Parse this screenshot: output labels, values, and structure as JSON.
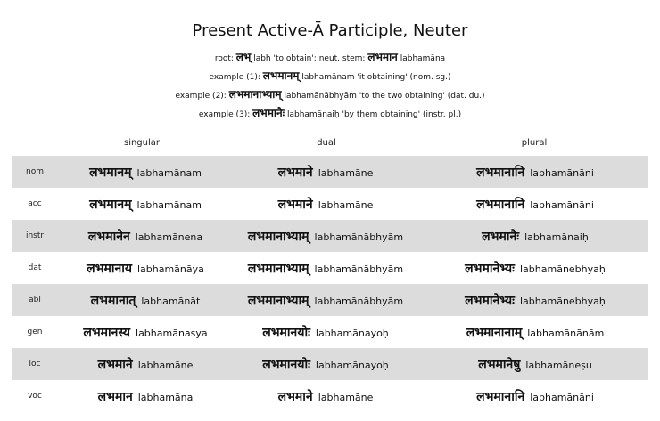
{
  "title": "Present Active-Ā Participle, Neuter",
  "info": {
    "root_prefix": "root: ",
    "root_dev": "लभ्",
    "root_rest": " labh 'to obtain'; neut. stem: ",
    "stem_dev": "लभमान",
    "stem_tr": " labhamāna",
    "ex1_prefix": "example (1): ",
    "ex1_dev": "लभमानम्",
    "ex1_rest": " labhamānam 'it obtaining' (nom. sg.)",
    "ex2_prefix": "example (2): ",
    "ex2_dev": "लभमानाभ्याम्",
    "ex2_rest": " labhamānābhyām 'to the two obtaining' (dat. du.)",
    "ex3_prefix": "example (3): ",
    "ex3_dev": "लभमानैः",
    "ex3_rest": " labhamānaiḥ 'by them obtaining' (instr. pl.)"
  },
  "headers": {
    "singular": "singular",
    "dual": "dual",
    "plural": "plural"
  },
  "rows": [
    {
      "case": "nom",
      "sg_dev": "लभमानम्",
      "sg_tr": "labhamānam",
      "du_dev": "लभमाने",
      "du_tr": "labhamāne",
      "pl_dev": "लभमानानि",
      "pl_tr": "labhamānāni"
    },
    {
      "case": "acc",
      "sg_dev": "लभमानम्",
      "sg_tr": "labhamānam",
      "du_dev": "लभमाने",
      "du_tr": "labhamāne",
      "pl_dev": "लभमानानि",
      "pl_tr": "labhamānāni"
    },
    {
      "case": "instr",
      "sg_dev": "लभमानेन",
      "sg_tr": "labhamānena",
      "du_dev": "लभमानाभ्याम्",
      "du_tr": "labhamānābhyām",
      "pl_dev": "लभमानैः",
      "pl_tr": "labhamānaiḥ"
    },
    {
      "case": "dat",
      "sg_dev": "लभमानाय",
      "sg_tr": "labhamānāya",
      "du_dev": "लभमानाभ्याम्",
      "du_tr": "labhamānābhyām",
      "pl_dev": "लभमानेभ्यः",
      "pl_tr": "labhamānebhyaḥ"
    },
    {
      "case": "abl",
      "sg_dev": "लभमानात्",
      "sg_tr": "labhamānāt",
      "du_dev": "लभमानाभ्याम्",
      "du_tr": "labhamānābhyām",
      "pl_dev": "लभमानेभ्यः",
      "pl_tr": "labhamānebhyaḥ"
    },
    {
      "case": "gen",
      "sg_dev": "लभमानस्य",
      "sg_tr": "labhamānasya",
      "du_dev": "लभमानयोः",
      "du_tr": "labhamānayoḥ",
      "pl_dev": "लभमानानाम्",
      "pl_tr": "labhamānānām"
    },
    {
      "case": "loc",
      "sg_dev": "लभमाने",
      "sg_tr": "labhamāne",
      "du_dev": "लभमानयोः",
      "du_tr": "labhamānayoḥ",
      "pl_dev": "लभमानेषु",
      "pl_tr": "labhamāneṣu"
    },
    {
      "case": "voc",
      "sg_dev": "लभमान",
      "sg_tr": "labhamāna",
      "du_dev": "लभमाने",
      "du_tr": "labhamāne",
      "pl_dev": "लभमानानि",
      "pl_tr": "labhamānāni"
    }
  ]
}
